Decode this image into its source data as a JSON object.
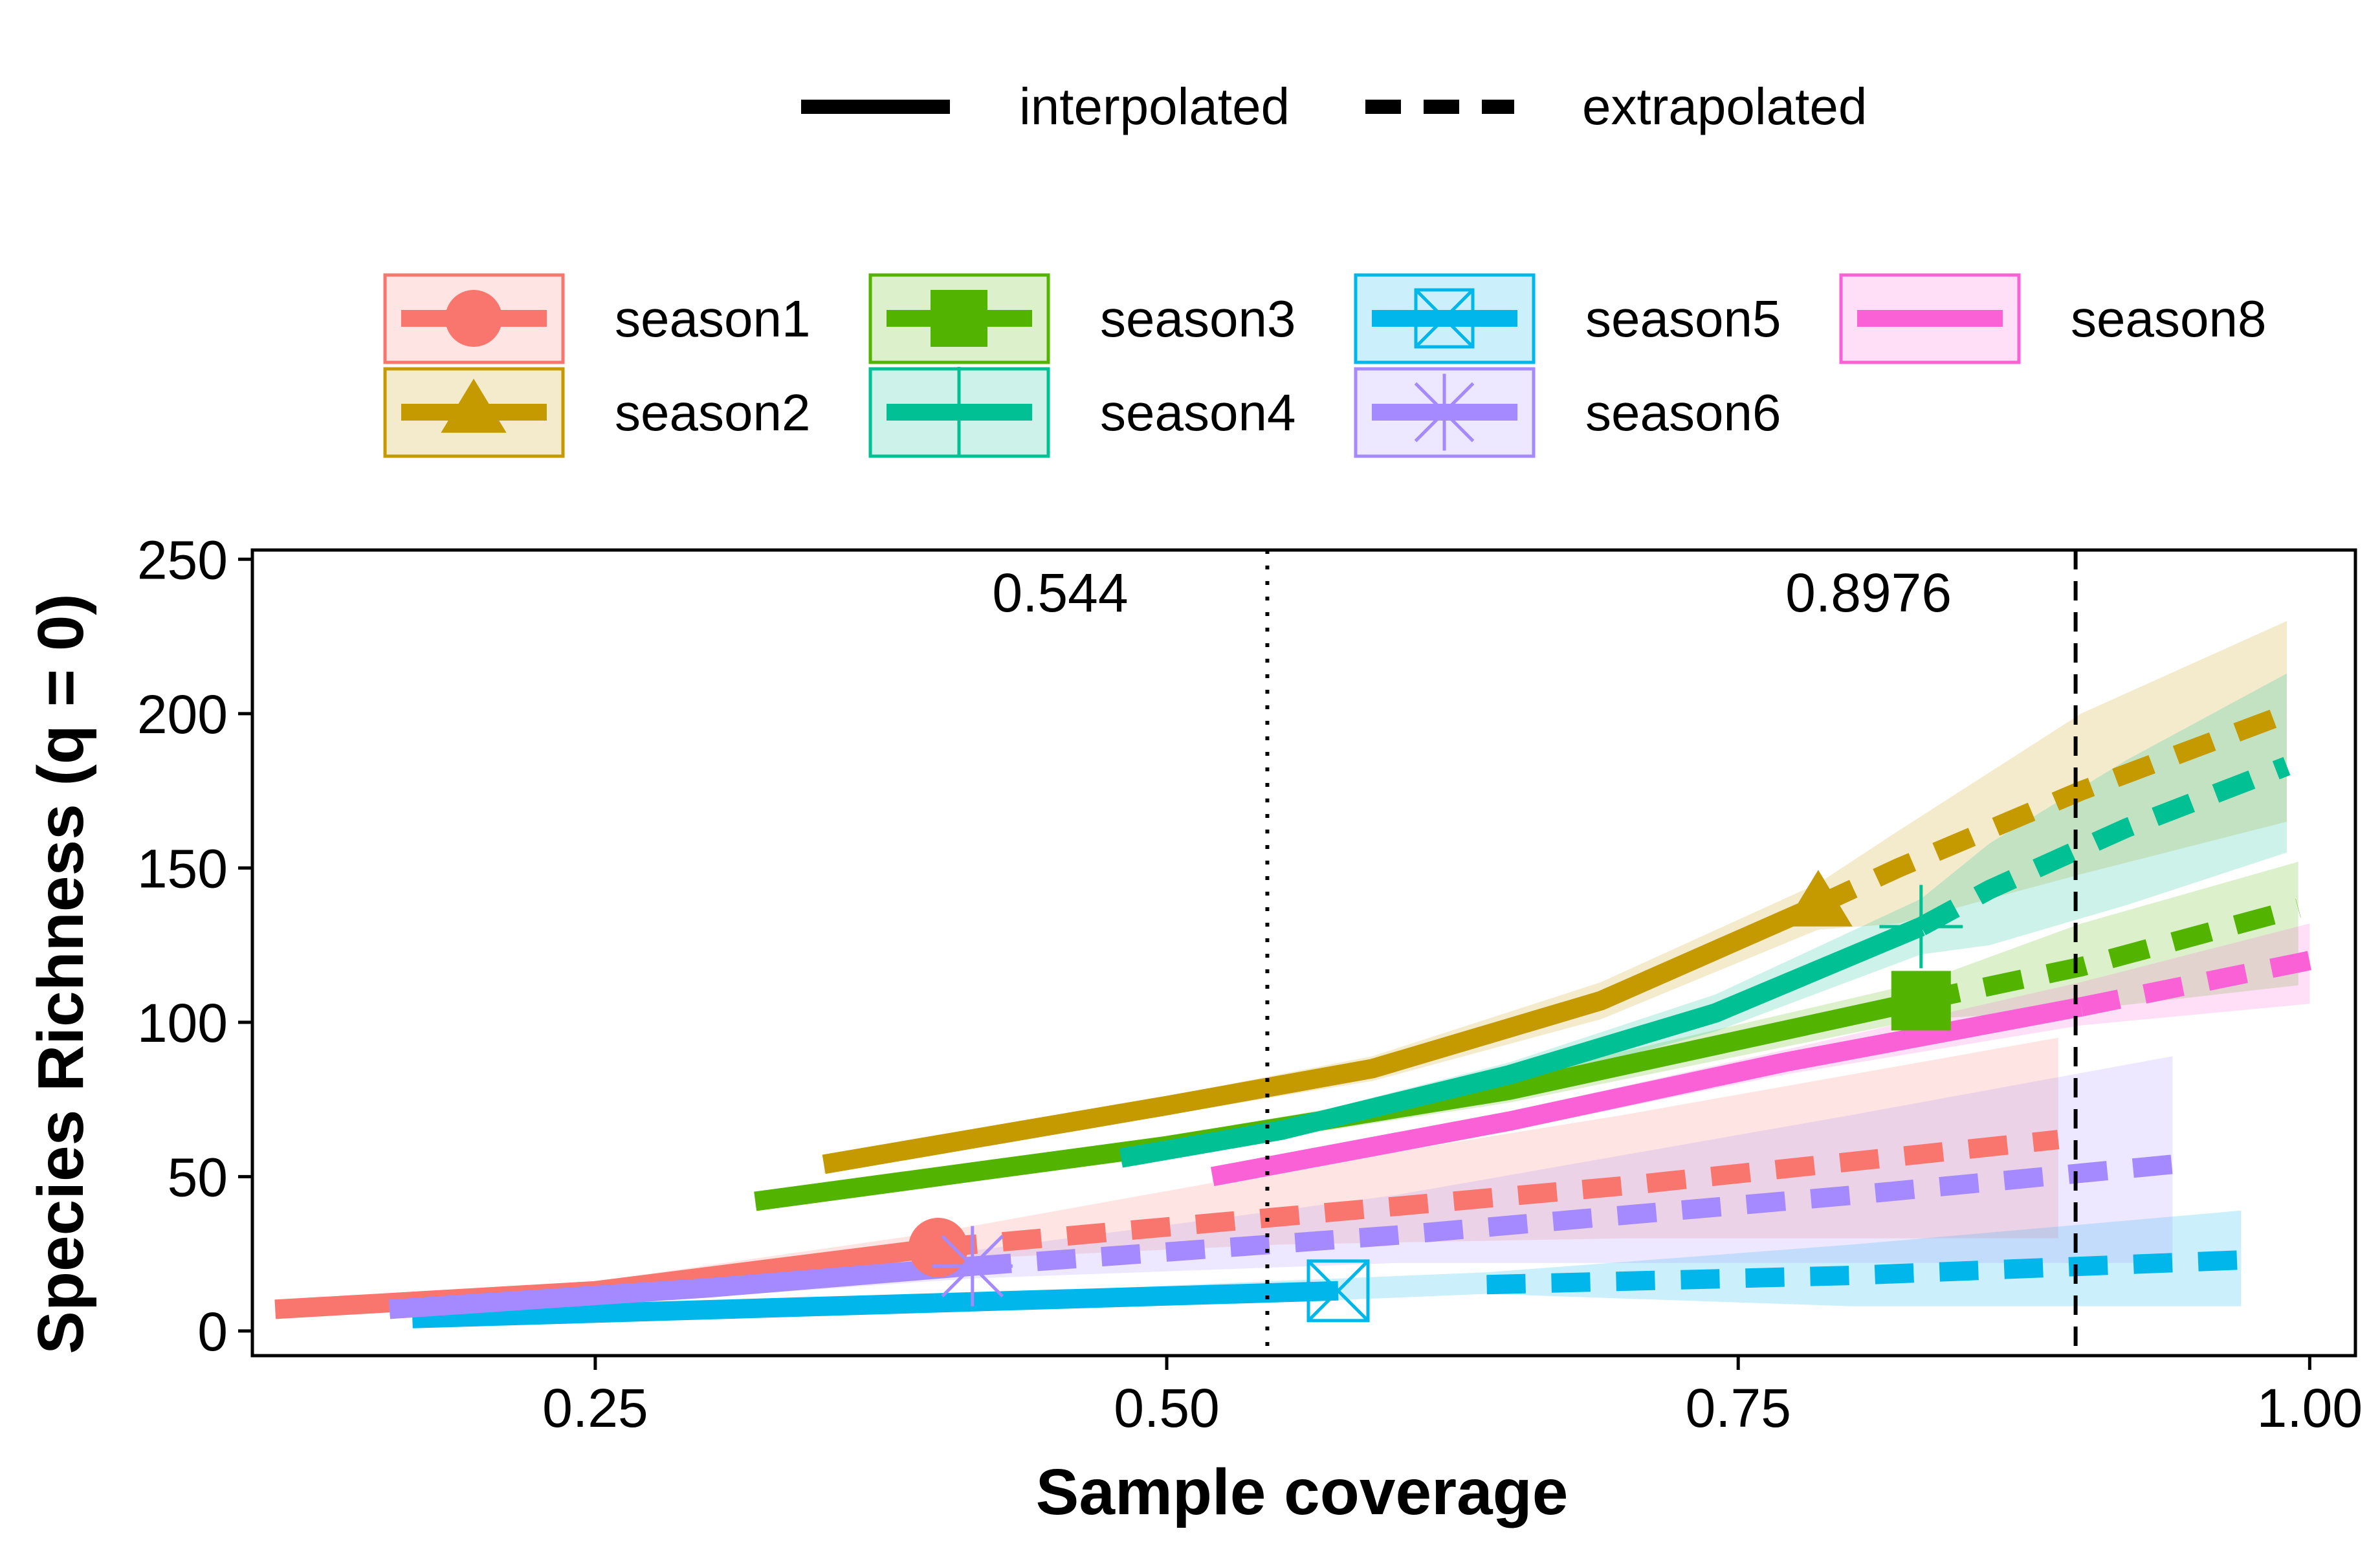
{
  "chart_data": {
    "type": "line",
    "xlabel": "Sample coverage",
    "ylabel": "Species Richness (q = 0)",
    "xlim": [
      0.1,
      1.02
    ],
    "ylim": [
      -8,
      253
    ],
    "x_ticks": [
      {
        "value": 0.25,
        "label": "0.25"
      },
      {
        "value": 0.5,
        "label": "0.50"
      },
      {
        "value": 0.75,
        "label": "0.75"
      },
      {
        "value": 1.0,
        "label": "1.00"
      }
    ],
    "y_ticks": [
      {
        "value": 0,
        "label": "0"
      },
      {
        "value": 50,
        "label": "50"
      },
      {
        "value": 100,
        "label": "100"
      },
      {
        "value": 150,
        "label": "150"
      },
      {
        "value": 200,
        "label": "200"
      },
      {
        "value": 250,
        "label": "250"
      }
    ],
    "grid": false,
    "legend_position": "top",
    "linetype_legend": [
      {
        "label": "interpolated",
        "style": "solid"
      },
      {
        "label": "extrapolated",
        "style": "dashed"
      }
    ],
    "reference_lines": [
      {
        "x": 0.544,
        "label": "0.544",
        "style": "dotted"
      },
      {
        "x": 0.8976,
        "label": "0.8976",
        "style": "dashed"
      }
    ],
    "series": [
      {
        "name": "season1",
        "color": "#F8766D",
        "shape": "circle",
        "interpolated": [
          [
            0.11,
            7
          ],
          [
            0.25,
            13
          ],
          [
            0.4,
            27
          ]
        ],
        "extrapolated": [
          [
            0.4,
            27
          ],
          [
            0.55,
            37
          ],
          [
            0.7,
            47
          ],
          [
            0.89,
            62
          ]
        ],
        "band": [
          [
            0.11,
            5,
            9
          ],
          [
            0.25,
            10,
            16
          ],
          [
            0.4,
            23,
            32
          ],
          [
            0.55,
            28,
            52
          ],
          [
            0.7,
            30,
            70
          ],
          [
            0.89,
            30,
            95
          ]
        ],
        "observed": [
          0.4,
          27
        ]
      },
      {
        "name": "season2",
        "color": "#C49A00",
        "shape": "triangle",
        "interpolated": [
          [
            0.35,
            54
          ],
          [
            0.5,
            73
          ],
          [
            0.59,
            85
          ],
          [
            0.69,
            107
          ],
          [
            0.785,
            138
          ]
        ],
        "extrapolated": [
          [
            0.785,
            138
          ],
          [
            0.82,
            150
          ],
          [
            0.9,
            175
          ],
          [
            0.99,
            200
          ]
        ],
        "band": [
          [
            0.35,
            51,
            57
          ],
          [
            0.5,
            70,
            76
          ],
          [
            0.59,
            81,
            89
          ],
          [
            0.69,
            101,
            113
          ],
          [
            0.785,
            130,
            145
          ],
          [
            0.82,
            132,
            162
          ],
          [
            0.9,
            148,
            200
          ],
          [
            0.99,
            165,
            230
          ]
        ],
        "observed": [
          0.785,
          138
        ]
      },
      {
        "name": "season3",
        "color": "#53B400",
        "shape": "square",
        "interpolated": [
          [
            0.32,
            42
          ],
          [
            0.5,
            60
          ],
          [
            0.65,
            78
          ],
          [
            0.83,
            107
          ]
        ],
        "extrapolated": [
          [
            0.83,
            107
          ],
          [
            0.9,
            118
          ],
          [
            0.995,
            137
          ]
        ],
        "band": [
          [
            0.32,
            40,
            44
          ],
          [
            0.5,
            57,
            63
          ],
          [
            0.65,
            74,
            82
          ],
          [
            0.83,
            101,
            113
          ],
          [
            0.9,
            104,
            132
          ],
          [
            0.995,
            112,
            152
          ]
        ],
        "observed": [
          0.83,
          107
        ]
      },
      {
        "name": "season4",
        "color": "#00C094",
        "shape": "cross",
        "interpolated": [
          [
            0.48,
            56
          ],
          [
            0.55,
            65
          ],
          [
            0.65,
            83
          ],
          [
            0.74,
            103
          ],
          [
            0.83,
            131
          ]
        ],
        "extrapolated": [
          [
            0.83,
            131
          ],
          [
            0.86,
            143
          ],
          [
            0.92,
            163
          ],
          [
            0.99,
            183
          ]
        ],
        "band": [
          [
            0.48,
            54,
            58
          ],
          [
            0.55,
            62,
            68
          ],
          [
            0.65,
            79,
            87
          ],
          [
            0.74,
            97,
            109
          ],
          [
            0.83,
            122,
            140
          ],
          [
            0.86,
            125,
            158
          ],
          [
            0.92,
            138,
            185
          ],
          [
            0.99,
            155,
            213
          ]
        ],
        "observed": [
          0.83,
          131
        ]
      },
      {
        "name": "season5",
        "color": "#00B6EB",
        "shape": "square-x",
        "interpolated": [
          [
            0.17,
            4
          ],
          [
            0.35,
            8
          ],
          [
            0.575,
            13
          ]
        ],
        "extrapolated": [
          [
            0.64,
            15
          ],
          [
            0.8,
            18
          ],
          [
            0.97,
            23
          ]
        ],
        "band": [
          [
            0.17,
            3,
            5
          ],
          [
            0.35,
            6,
            10
          ],
          [
            0.575,
            10,
            17
          ],
          [
            0.64,
            12,
            19
          ],
          [
            0.8,
            8,
            28
          ],
          [
            0.97,
            8,
            39
          ]
        ],
        "observed": [
          0.575,
          13
        ]
      },
      {
        "name": "season6",
        "color": "#A58AFF",
        "shape": "asterisk",
        "interpolated": [
          [
            0.16,
            7
          ],
          [
            0.3,
            14
          ],
          [
            0.415,
            21
          ]
        ],
        "extrapolated": [
          [
            0.415,
            21
          ],
          [
            0.6,
            31
          ],
          [
            0.8,
            44
          ],
          [
            0.94,
            54
          ]
        ],
        "band": [
          [
            0.16,
            5,
            9
          ],
          [
            0.3,
            11,
            17
          ],
          [
            0.415,
            17,
            26
          ],
          [
            0.6,
            22,
            44
          ],
          [
            0.8,
            22,
            70
          ],
          [
            0.94,
            22,
            89
          ]
        ],
        "observed": [
          0.415,
          21
        ]
      },
      {
        "name": "season8",
        "color": "#FB61D7",
        "shape": "none",
        "interpolated": [
          [
            0.52,
            50
          ],
          [
            0.65,
            68
          ],
          [
            0.77,
            87
          ],
          [
            0.9,
            105
          ]
        ],
        "extrapolated": [
          [
            0.9,
            105
          ],
          [
            1.0,
            120
          ]
        ],
        "band": [
          [
            0.52,
            48,
            52
          ],
          [
            0.65,
            65,
            71
          ],
          [
            0.77,
            83,
            91
          ],
          [
            0.9,
            99,
            113
          ],
          [
            1.0,
            106,
            132
          ]
        ],
        "observed": null
      }
    ]
  }
}
